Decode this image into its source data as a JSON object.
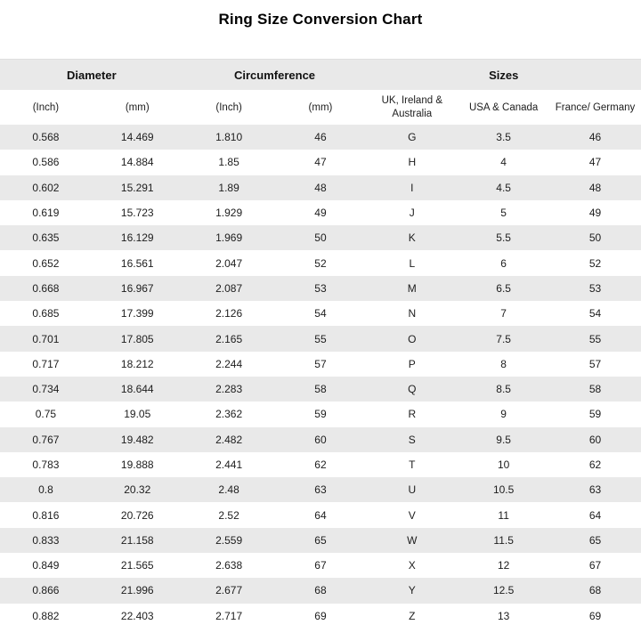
{
  "title": "Ring Size Conversion Chart",
  "colors": {
    "background": "#ffffff",
    "stripe": "#e9e9e9",
    "text": "#1d1d1d"
  },
  "chart_data": {
    "type": "table",
    "title": "Ring Size Conversion Chart",
    "column_groups": [
      {
        "label": "Diameter",
        "span": 2
      },
      {
        "label": "Circumference",
        "span": 2
      },
      {
        "label": "Sizes",
        "span": 3
      }
    ],
    "columns": [
      "(Inch)",
      "(mm)",
      "(Inch)",
      "(mm)",
      "UK, Ireland & Australia",
      "USA & Canada",
      "France/ Germany"
    ],
    "rows": [
      [
        "0.568",
        "14.469",
        "1.810",
        "46",
        "G",
        "3.5",
        "46"
      ],
      [
        "0.586",
        "14.884",
        "1.85",
        "47",
        "H",
        "4",
        "47"
      ],
      [
        "0.602",
        "15.291",
        "1.89",
        "48",
        "I",
        "4.5",
        "48"
      ],
      [
        "0.619",
        "15.723",
        "1.929",
        "49",
        "J",
        "5",
        "49"
      ],
      [
        "0.635",
        "16.129",
        "1.969",
        "50",
        "K",
        "5.5",
        "50"
      ],
      [
        "0.652",
        "16.561",
        "2.047",
        "52",
        "L",
        "6",
        "52"
      ],
      [
        "0.668",
        "16.967",
        "2.087",
        "53",
        "M",
        "6.5",
        "53"
      ],
      [
        "0.685",
        "17.399",
        "2.126",
        "54",
        "N",
        "7",
        "54"
      ],
      [
        "0.701",
        "17.805",
        "2.165",
        "55",
        "O",
        "7.5",
        "55"
      ],
      [
        "0.717",
        "18.212",
        "2.244",
        "57",
        "P",
        "8",
        "57"
      ],
      [
        "0.734",
        "18.644",
        "2.283",
        "58",
        "Q",
        "8.5",
        "58"
      ],
      [
        "0.75",
        "19.05",
        "2.362",
        "59",
        "R",
        "9",
        "59"
      ],
      [
        "0.767",
        "19.482",
        "2.482",
        "60",
        "S",
        "9.5",
        "60"
      ],
      [
        "0.783",
        "19.888",
        "2.441",
        "62",
        "T",
        "10",
        "62"
      ],
      [
        "0.8",
        "20.32",
        "2.48",
        "63",
        "U",
        "10.5",
        "63"
      ],
      [
        "0.816",
        "20.726",
        "2.52",
        "64",
        "V",
        "11",
        "64"
      ],
      [
        "0.833",
        "21.158",
        "2.559",
        "65",
        "W",
        "11.5",
        "65"
      ],
      [
        "0.849",
        "21.565",
        "2.638",
        "67",
        "X",
        "12",
        "67"
      ],
      [
        "0.866",
        "21.996",
        "2.677",
        "68",
        "Y",
        "12.5",
        "68"
      ],
      [
        "0.882",
        "22.403",
        "2.717",
        "69",
        "Z",
        "13",
        "69"
      ]
    ]
  }
}
